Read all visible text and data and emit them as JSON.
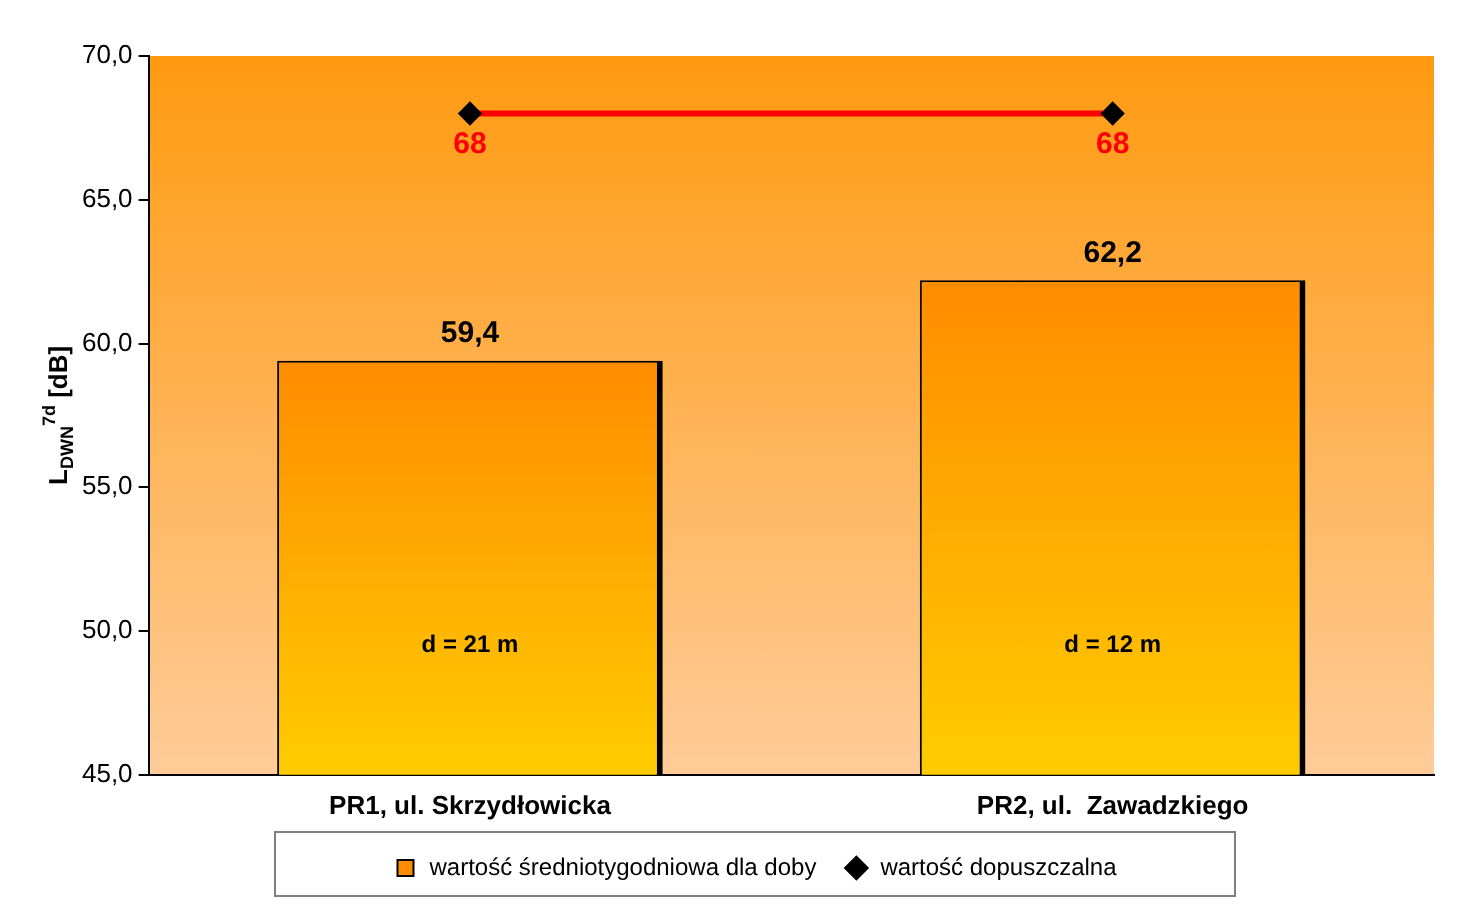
{
  "chart_data": {
    "type": "bar",
    "ylabel": "L$_{DWN}$$^{7d}$ [dB]",
    "categories": [
      "PR1, ul. Skrzydłowicka",
      "PR2, ul.  Zawadzkiego"
    ],
    "series": [
      {
        "name": "wartość średniotygodniowa dla doby",
        "color": "#ff8c00",
        "values": [
          59.4,
          62.2
        ],
        "value_labels": [
          "59,4",
          "62,2"
        ]
      },
      {
        "name": "wartość dopuszczalna",
        "type": "line",
        "color": "#ff0000",
        "values": [
          68,
          68
        ],
        "value_labels": [
          "68",
          "68"
        ]
      }
    ],
    "ylim": [
      45,
      70
    ],
    "yticks": [
      {
        "value": 45,
        "label": "45,0"
      },
      {
        "value": 50,
        "label": "50,0"
      },
      {
        "value": 55,
        "label": "55,0"
      },
      {
        "value": 60,
        "label": "60,0"
      },
      {
        "value": 65,
        "label": "65,0"
      },
      {
        "value": 70,
        "label": "70,0"
      }
    ],
    "annotations": [
      "d = 21 m",
      "d = 12 m"
    ],
    "marker": "diamond",
    "legend": "bottom",
    "grid": false
  }
}
